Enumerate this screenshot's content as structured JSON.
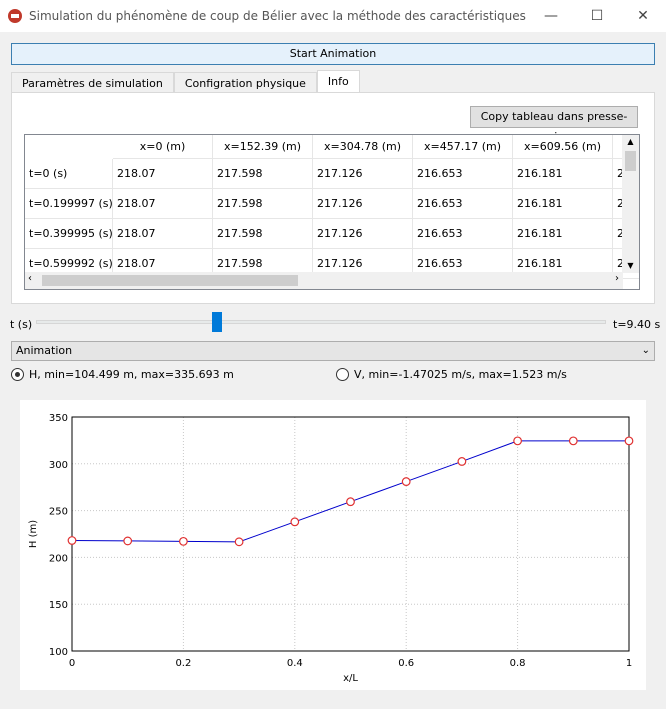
{
  "window": {
    "title": "Simulation du phénomène de coup de Bélier avec la méthode des caractéristiques"
  },
  "toolbar": {
    "start_label": "Start Animation"
  },
  "tabs": [
    {
      "label": "Paramètres de simulation"
    },
    {
      "label": "Configration physique"
    },
    {
      "label": "Info",
      "active": true
    }
  ],
  "info": {
    "copy_label": "Copy tableau dans presse-papiers",
    "columns": [
      "x=0 (m)",
      "x=152.39 (m)",
      "x=304.78 (m)",
      "x=457.17 (m)",
      "x=609.56 (m)",
      "2"
    ],
    "rows": [
      {
        "label": "t=0 (s)",
        "values": [
          "218.07",
          "217.598",
          "217.126",
          "216.653",
          "216.181",
          "2"
        ]
      },
      {
        "label": "t=0.199997 (s)",
        "values": [
          "218.07",
          "217.598",
          "217.126",
          "216.653",
          "216.181",
          "2"
        ]
      },
      {
        "label": "t=0.399995 (s)",
        "values": [
          "218.07",
          "217.598",
          "217.126",
          "216.653",
          "216.181",
          "2"
        ]
      },
      {
        "label": "t=0.599992 (s)",
        "values": [
          "218.07",
          "217.598",
          "217.126",
          "216.653",
          "216.181",
          "2"
        ]
      }
    ]
  },
  "slider": {
    "label": "t (s)",
    "max_label": "t=9.40 s",
    "value_fraction": 0.32
  },
  "combo": {
    "value": "Animation"
  },
  "radios": [
    {
      "label": "H, min=104.499 m, max=335.693 m",
      "checked": true
    },
    {
      "label": "V, min=-1.47025 m/s, max=1.523 m/s",
      "checked": false
    }
  ],
  "chart_data": {
    "type": "line",
    "xlabel": "x/L",
    "ylabel": "H (m)",
    "xlim": [
      0,
      1
    ],
    "ylim": [
      100,
      350
    ],
    "xticks": [
      "0",
      "0.2",
      "0.4",
      "0.6",
      "0.8",
      "1"
    ],
    "yticks": [
      "100",
      "150",
      "200",
      "250",
      "300",
      "350"
    ],
    "grid": true,
    "line_color": "#0000cc",
    "marker_color": "#e03030",
    "x": [
      0,
      0.1,
      0.2,
      0.3,
      0.4,
      0.5,
      0.6,
      0.7,
      0.8,
      0.9,
      1.0
    ],
    "y": [
      218.07,
      217.6,
      217.13,
      216.65,
      238,
      259.5,
      281,
      302.5,
      324.5,
      324.5,
      324.5
    ]
  }
}
